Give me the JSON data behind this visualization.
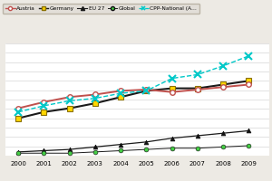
{
  "years": [
    2000,
    2001,
    2002,
    2003,
    2004,
    2005,
    2006,
    2007,
    2008,
    2009
  ],
  "austria": [
    38,
    43,
    47,
    49,
    52,
    53,
    51,
    53,
    55,
    57
  ],
  "germany": [
    30,
    35,
    38,
    42,
    47,
    52,
    54,
    54,
    57,
    60
  ],
  "cpp": [
    35,
    40,
    44,
    46,
    50,
    52,
    62,
    65,
    72,
    80
  ],
  "eu27": [
    3,
    4,
    5,
    7,
    9,
    11,
    14,
    16,
    18,
    20
  ],
  "global": [
    2,
    2,
    2,
    3,
    4,
    5,
    6,
    6,
    7,
    8
  ],
  "austria_color": "#c0504d",
  "germany_color": "#1a1a1a",
  "eu27_color": "#1a1a1a",
  "global_color": "#1a1a1a",
  "cpp_color": "#00c8c8",
  "background_color": "#edeae4",
  "plot_bg": "#ffffff",
  "legend_bg": "#e0dcd6",
  "ylim": [
    0,
    90
  ],
  "xlim_min": 1999.5,
  "xlim_max": 2009.8
}
